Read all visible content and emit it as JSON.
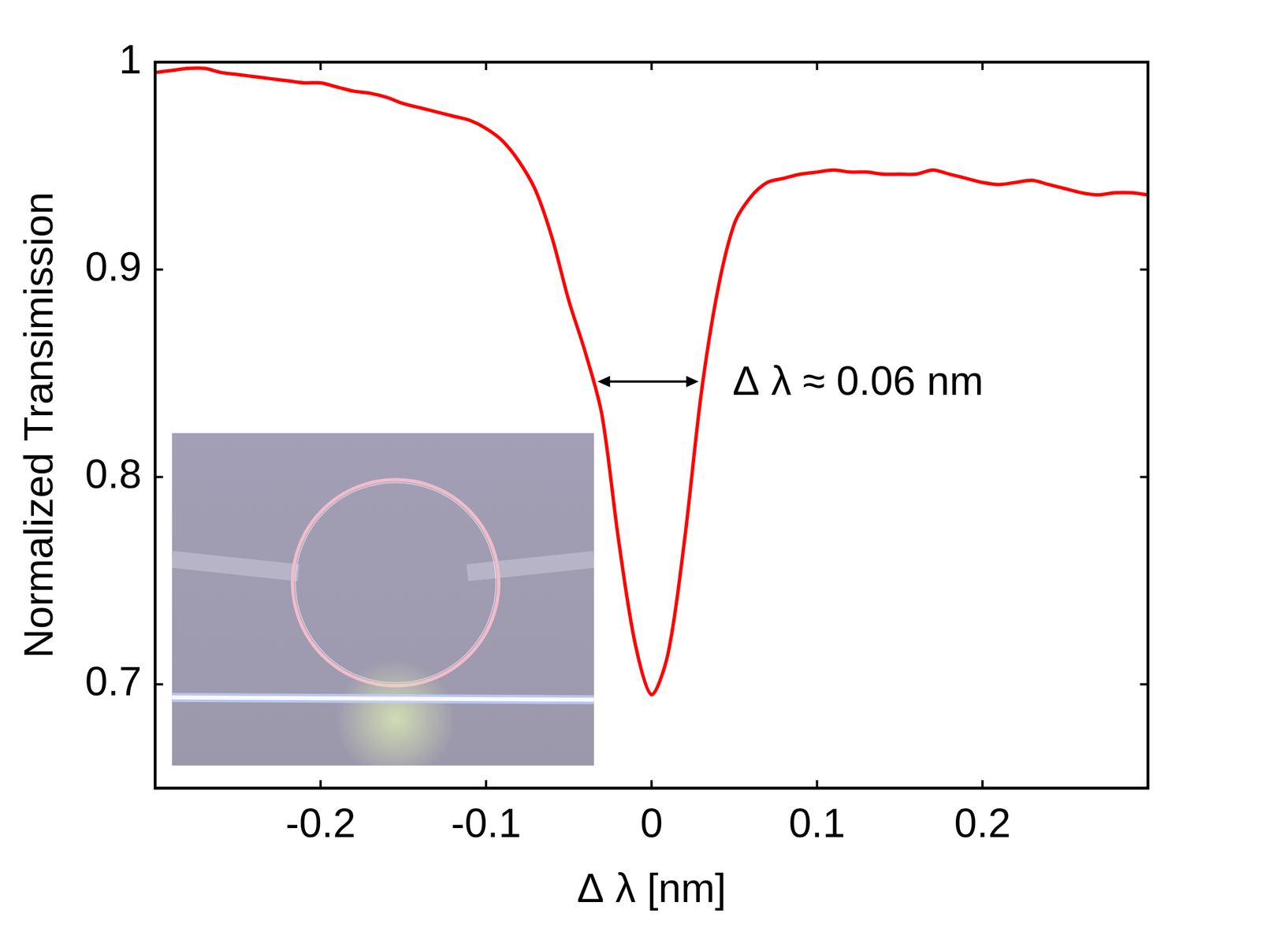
{
  "chart_data": {
    "type": "line",
    "xlabel": "Δ λ [nm]",
    "ylabel": "Normalized Transimission",
    "annotation": "Δ λ ≈ 0.06 nm",
    "x": [
      -0.3,
      -0.29,
      -0.28,
      -0.27,
      -0.26,
      -0.25,
      -0.24,
      -0.23,
      -0.22,
      -0.21,
      -0.2,
      -0.19,
      -0.18,
      -0.17,
      -0.16,
      -0.15,
      -0.14,
      -0.13,
      -0.12,
      -0.11,
      -0.1,
      -0.09,
      -0.08,
      -0.07,
      -0.06,
      -0.05,
      -0.04,
      -0.03,
      -0.02,
      -0.01,
      0,
      0.01,
      0.02,
      0.03,
      0.04,
      0.05,
      0.06,
      0.07,
      0.08,
      0.09,
      0.1,
      0.11,
      0.12,
      0.13,
      0.14,
      0.15,
      0.16,
      0.17,
      0.18,
      0.19,
      0.2,
      0.21,
      0.22,
      0.23,
      0.24,
      0.25,
      0.26,
      0.27,
      0.28,
      0.29,
      0.3
    ],
    "values": [
      0.995,
      0.996,
      0.997,
      0.997,
      0.995,
      0.994,
      0.993,
      0.992,
      0.991,
      0.99,
      0.99,
      0.988,
      0.986,
      0.985,
      0.983,
      0.98,
      0.978,
      0.976,
      0.974,
      0.972,
      0.968,
      0.962,
      0.952,
      0.938,
      0.915,
      0.885,
      0.86,
      0.83,
      0.77,
      0.72,
      0.695,
      0.715,
      0.77,
      0.84,
      0.89,
      0.922,
      0.935,
      0.942,
      0.944,
      0.946,
      0.947,
      0.948,
      0.947,
      0.947,
      0.946,
      0.946,
      0.946,
      0.948,
      0.946,
      0.944,
      0.942,
      0.941,
      0.942,
      0.943,
      0.941,
      0.939,
      0.937,
      0.936,
      0.937,
      0.937,
      0.936
    ],
    "color": "#ff0000",
    "line_style": "solid",
    "marker": "none",
    "xlim": [
      -0.3,
      0.3
    ],
    "ylim": [
      0.65,
      1
    ],
    "xticks": [
      -0.2,
      -0.1,
      0,
      0.1,
      0.2
    ],
    "yticks": [
      0.7,
      0.8,
      0.9,
      1
    ],
    "grid": false
  }
}
